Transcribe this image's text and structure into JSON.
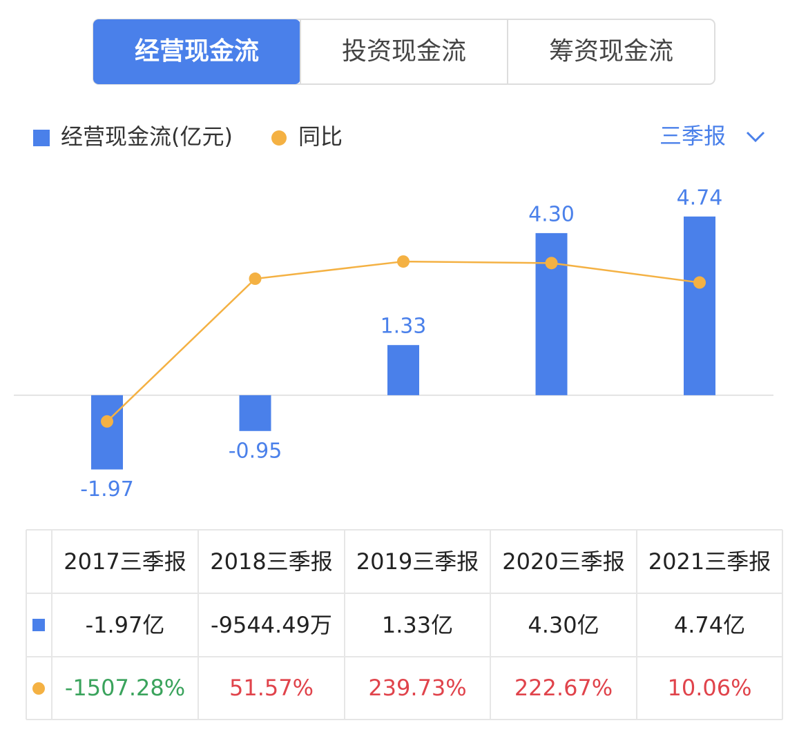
{
  "tabs": [
    "经营现金流",
    "投资现金流",
    "筹资现金流"
  ],
  "period_selector": "三季报",
  "chart_data": {
    "type": "bar_line",
    "categories": [
      "2017三季报",
      "2018三季报",
      "2019三季报",
      "2020三季报",
      "2021三季报"
    ],
    "series": [
      {
        "name": "经营现金流(亿元)",
        "color": "#4a80ea",
        "type": "bar",
        "values": [
          -1.97,
          -0.95,
          1.33,
          4.3,
          4.74
        ],
        "value_labels": [
          "-1.97",
          "-0.95",
          "1.33",
          "4.30",
          "4.74"
        ]
      },
      {
        "name": "同比",
        "color": "#f4b143",
        "type": "line",
        "axis": "y2",
        "values": [
          -1507.28,
          51.57,
          239.73,
          222.67,
          10.06
        ],
        "value_labels": [
          "-1507.28%",
          "51.57%",
          "239.73%",
          "222.67%",
          "10.06%"
        ]
      }
    ],
    "ylim": [
      -2.5,
      6
    ],
    "y2lim": [
      -2250,
      1250
    ]
  },
  "table": {
    "rows": [
      [
        "-1.97亿",
        "-9544.49万",
        "1.33亿",
        "4.30亿",
        "4.74亿"
      ]
    ]
  }
}
